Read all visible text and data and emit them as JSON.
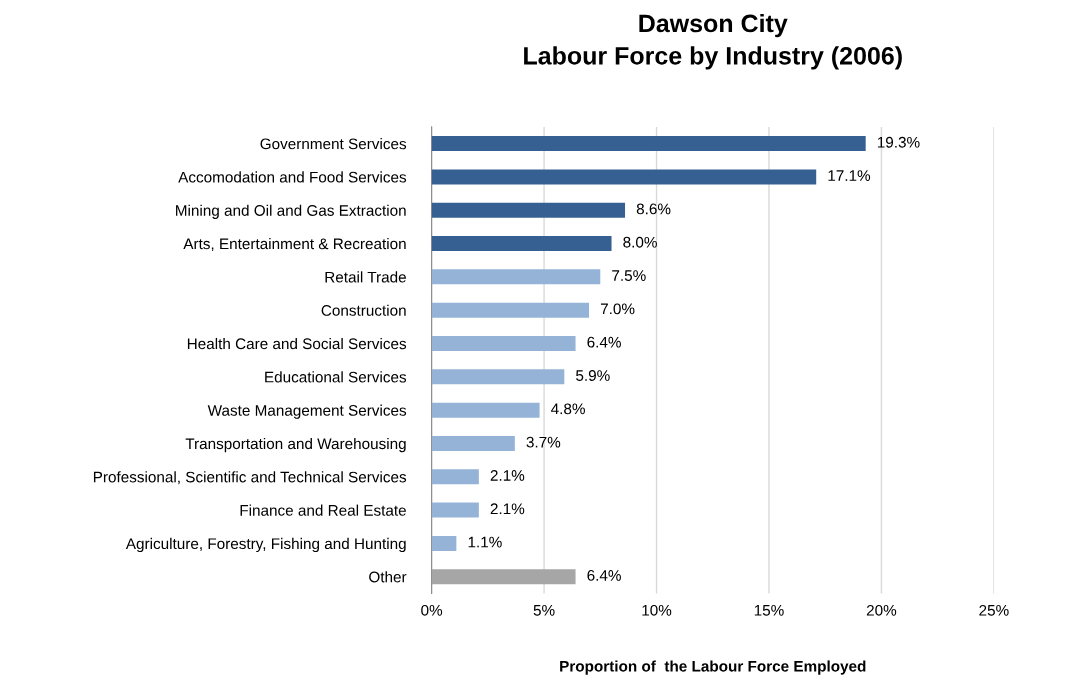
{
  "chart_data": {
    "type": "bar",
    "orientation": "horizontal",
    "title": "Dawson City\nLabour Force by Industry (2006)",
    "xlabel": "Proportion of  the Labour Force Employed",
    "categories": [
      "Government Services",
      "Accomodation and Food Services",
      "Mining and Oil and Gas Extraction",
      "Arts, Entertainment & Recreation",
      "Retail Trade",
      "Construction",
      "Health Care and Social Services",
      "Educational Services",
      "Waste Management Services",
      "Transportation and Warehousing",
      "Professional, Scientific and Technical Services",
      "Finance and Real Estate",
      "Agriculture, Forestry, Fishing and Hunting",
      "Other"
    ],
    "values": [
      19.3,
      17.1,
      8.6,
      8.0,
      7.5,
      7.0,
      6.4,
      5.9,
      4.8,
      3.7,
      2.1,
      2.1,
      1.1,
      6.4
    ],
    "value_labels": [
      "19.3%",
      "17.1%",
      "8.6%",
      "8.0%",
      "7.5%",
      "7.0%",
      "6.4%",
      "5.9%",
      "4.8%",
      "3.7%",
      "2.1%",
      "2.1%",
      "1.1%",
      "6.4%"
    ],
    "colors": [
      "#376092",
      "#376092",
      "#376092",
      "#376092",
      "#95b3d7",
      "#95b3d7",
      "#95b3d7",
      "#95b3d7",
      "#95b3d7",
      "#95b3d7",
      "#95b3d7",
      "#95b3d7",
      "#95b3d7",
      "#a6a6a6"
    ],
    "xlim": [
      0,
      25
    ],
    "xticks": [
      {
        "value": 0,
        "label": "0%"
      },
      {
        "value": 5,
        "label": "5%"
      },
      {
        "value": 10,
        "label": "10%"
      },
      {
        "value": 15,
        "label": "15%"
      },
      {
        "value": 20,
        "label": "20%"
      },
      {
        "value": 25,
        "label": "25%"
      }
    ],
    "grid": "x",
    "legend": false
  }
}
